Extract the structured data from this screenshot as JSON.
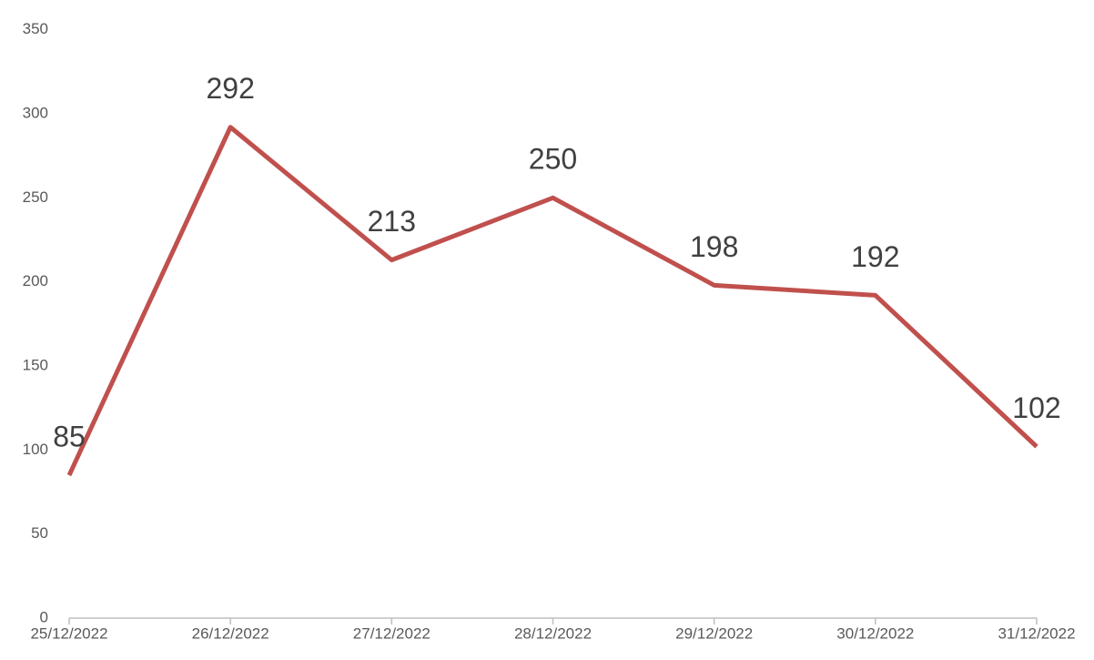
{
  "chart_data": {
    "type": "line",
    "categories": [
      "25/12/2022",
      "26/12/2022",
      "27/12/2022",
      "28/12/2022",
      "29/12/2022",
      "30/12/2022",
      "31/12/2022"
    ],
    "series": [
      {
        "color": "#c0504d",
        "values": [
          85,
          292,
          213,
          250,
          198,
          192,
          102
        ]
      }
    ],
    "ylim": [
      0,
      350
    ],
    "yticks": [
      0,
      50,
      100,
      150,
      200,
      250,
      300,
      350
    ],
    "grid": false,
    "data_labels": true
  }
}
